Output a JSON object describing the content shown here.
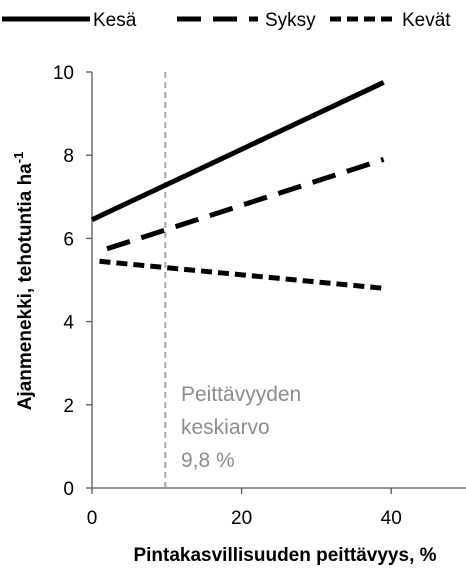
{
  "chart_data": {
    "type": "line",
    "xlabel": "Pintakasvillisuuden peittävyys, %",
    "ylabel": "Ajanmenekki, tehotuntia ha",
    "ylabel_sup": "-1",
    "xlim": [
      0,
      50
    ],
    "ylim": [
      0,
      10
    ],
    "xticks": [
      0,
      20,
      40
    ],
    "yticks": [
      0,
      2,
      4,
      6,
      8,
      10
    ],
    "grid": false,
    "legend_position": "top",
    "series": [
      {
        "name": "Kesä",
        "style": "solid",
        "x": [
          0,
          39
        ],
        "y": [
          6.45,
          9.75
        ]
      },
      {
        "name": "Syksy",
        "style": "long-dash",
        "x": [
          2,
          39
        ],
        "y": [
          5.75,
          7.9
        ]
      },
      {
        "name": "Kevät",
        "style": "short-dash",
        "x": [
          1,
          39
        ],
        "y": [
          5.45,
          4.8
        ]
      }
    ],
    "reference_line": {
      "x": 9.8,
      "color": "#a6a6a6",
      "style": "dashed",
      "annotation": [
        "Peittävyyden",
        "keskiarvo",
        "9,8 %"
      ]
    }
  }
}
